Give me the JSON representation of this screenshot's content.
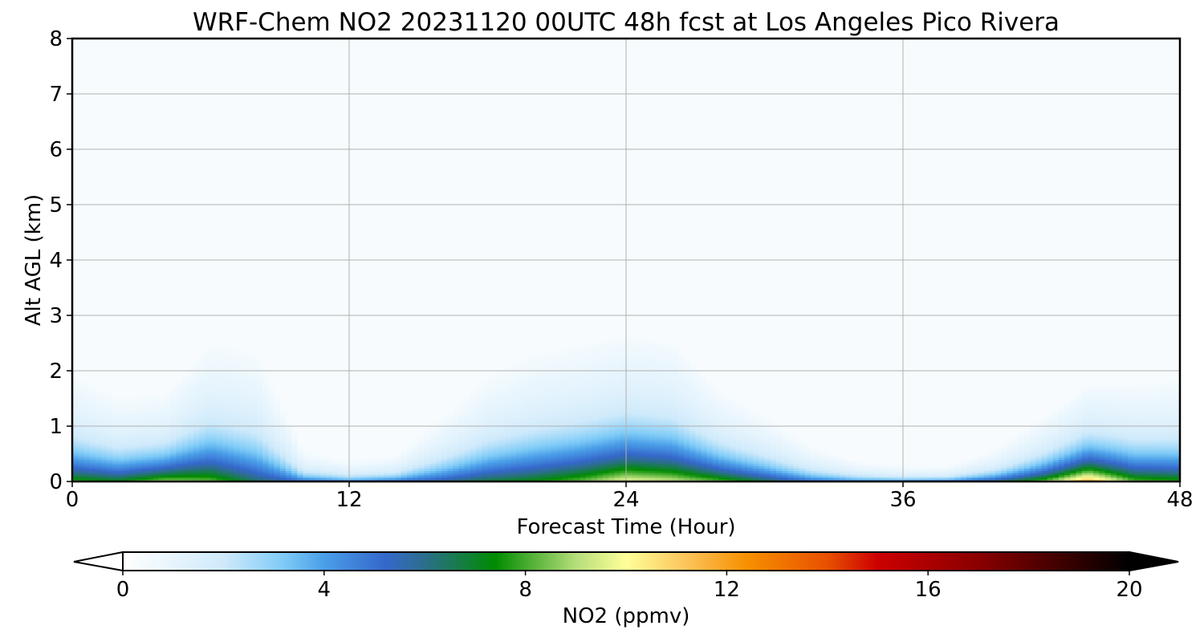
{
  "chart_data": {
    "type": "heatmap",
    "title": "WRF-Chem NO2  20231120 00UTC 48h fcst at Los Angeles Pico Rivera",
    "xlabel": "Forecast Time (Hour)",
    "ylabel": "Alt AGL (km)",
    "xlim": [
      0,
      48
    ],
    "ylim": [
      0,
      8
    ],
    "x_ticks": [
      0,
      12,
      24,
      36,
      48
    ],
    "y_ticks": [
      0,
      1,
      2,
      3,
      4,
      5,
      6,
      7,
      8
    ],
    "grid": true,
    "colorbar": {
      "label": "NO2  (ppmv)",
      "range": [
        0,
        20
      ],
      "ticks": [
        0,
        4,
        8,
        12,
        16,
        20
      ],
      "extend": "both",
      "orientation": "horizontal",
      "placement": "bottom",
      "colors": [
        "#ffffff",
        "#7ecbf7",
        "#3568cc",
        "#008b00",
        "#ffff99",
        "#f79000",
        "#cc0000",
        "#000000"
      ]
    },
    "hours": [
      0,
      2,
      4,
      6,
      8,
      10,
      12,
      14,
      16,
      18,
      20,
      22,
      24,
      26,
      28,
      30,
      32,
      34,
      36,
      38,
      40,
      42,
      44,
      46,
      48
    ],
    "surface_no2_ppmv": [
      8.0,
      7.5,
      9.0,
      8.5,
      6.5,
      5.5,
      5.0,
      5.5,
      6.0,
      7.0,
      7.5,
      8.5,
      10.0,
      9.5,
      8.5,
      7.0,
      5.5,
      5.0,
      5.0,
      5.5,
      6.5,
      8.5,
      12.0,
      8.5,
      8.0
    ],
    "plume_top_km": [
      1.9,
      1.5,
      1.5,
      2.4,
      2.4,
      0.6,
      0.4,
      0.5,
      1.2,
      1.9,
      2.3,
      2.4,
      2.5,
      2.4,
      1.6,
      1.2,
      0.7,
      0.4,
      0.3,
      0.3,
      0.6,
      1.1,
      1.6,
      1.7,
      1.8
    ]
  }
}
